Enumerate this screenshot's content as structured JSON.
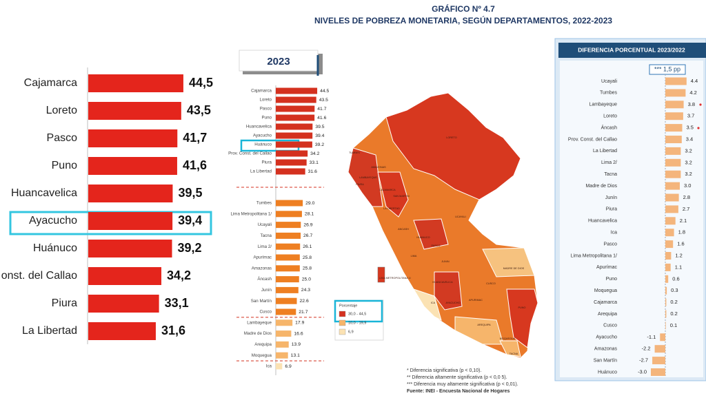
{
  "header": {
    "title": "GRÁFICO Nº 4.7",
    "subtitle": "NIVELES DE POBREZA MONETARIA, SEGÚN DEPARTAMENTOS, 2022-2023"
  },
  "chart_data": [
    {
      "type": "bar",
      "orientation": "horizontal",
      "categories": [
        "Cajamarca",
        "Loreto",
        "Pasco",
        "Puno",
        "Huancavelica",
        "Ayacucho",
        "Huánuco",
        "onst. del Callao",
        "Piura",
        "La Libertad"
      ],
      "values": [
        44.5,
        43.5,
        41.7,
        41.6,
        39.5,
        39.4,
        39.2,
        34.2,
        33.1,
        31.6
      ],
      "value_labels": [
        "44,5",
        "43,5",
        "41,7",
        "41,6",
        "39,5",
        "39,4",
        "39,2",
        "34,2",
        "33,1",
        "31,6"
      ],
      "color": "#e4251c"
    },
    {
      "type": "bar",
      "orientation": "horizontal",
      "title": "2023",
      "categories": [
        "Cajamarca",
        "Loreto",
        "Pasco",
        "Puno",
        "Huancavelica",
        "Ayacucho",
        "Huánuco",
        "Prov. Const. del Callao",
        "Piura",
        "La Libertad",
        "Tumbes",
        "Lima Metropolitana 1/",
        "Ucayali",
        "Tacna",
        "Lima 2/",
        "Apurímac",
        "Amazonas",
        "Áncash",
        "Junín",
        "San Martín",
        "Cusco",
        "Lambayeque",
        "Madre de Dios",
        "Arequipa",
        "Moquegua",
        "Ica"
      ],
      "values": [
        44.5,
        43.5,
        41.7,
        41.6,
        39.5,
        39.4,
        39.2,
        34.2,
        33.1,
        31.6,
        29.0,
        28.1,
        26.9,
        26.7,
        26.1,
        25.8,
        25.8,
        25.0,
        24.3,
        22.6,
        21.7,
        17.9,
        16.6,
        13.9,
        13.1,
        6.9
      ],
      "value_labels": [
        "44.5",
        "43.5",
        "41.7",
        "41.6",
        "39.5",
        "39.4",
        "39.2",
        "34.2",
        "33.1",
        "31.6",
        "29.0",
        "28.1",
        "26.9",
        "26.7",
        "26.1",
        "25.8",
        "25.8",
        "25.0",
        "24.3",
        "22.6",
        "21.7",
        "17.9",
        "16.6",
        "13.9",
        "13.1",
        "6.9"
      ],
      "colors": [
        "#d4311f",
        "#d4311f",
        "#d4311f",
        "#d4311f",
        "#d4311f",
        "#d4311f",
        "#d4311f",
        "#d4311f",
        "#d4311f",
        "#d4311f",
        "#ee7f22",
        "#ee7f22",
        "#ee7f22",
        "#ee7f22",
        "#ee7f22",
        "#ee7f22",
        "#ee7f22",
        "#ee7f22",
        "#ee7f22",
        "#ee7f22",
        "#ee7f22",
        "#f6b56b",
        "#f6b56b",
        "#f6b56b",
        "#f6b56b",
        "#fbe2b3"
      ]
    },
    {
      "type": "bar",
      "orientation": "horizontal",
      "title": "DIFERENCIA PORCENTUAL 2023/2022",
      "annotation": "*** 1,5 pp",
      "categories": [
        "Ucayali",
        "Tumbes",
        "Lambayeque",
        "Loreto",
        "Áncash",
        "Prov. Const. del Callao",
        "La Libertad",
        "Lima 2/",
        "Tacna",
        "Madre de Dios",
        "Junín",
        "Piura",
        "Huancavelica",
        "Ica",
        "Pasco",
        "Lima Metropolitana 1/",
        "Apurímac",
        "Puno",
        "Moquegua",
        "Cajamarca",
        "Arequipa",
        "Cusco",
        "Ayacucho",
        "Amazonas",
        "San Martín",
        "Huánuco"
      ],
      "values": [
        4.4,
        4.2,
        3.8,
        3.7,
        3.5,
        3.4,
        3.2,
        3.2,
        3.2,
        3.0,
        2.8,
        2.7,
        2.1,
        1.8,
        1.6,
        1.2,
        1.1,
        0.6,
        0.3,
        0.2,
        0.2,
        0.1,
        -1.1,
        -2.2,
        -2.7,
        -3.0
      ],
      "value_labels": [
        "4.4",
        "4.2",
        "3.8",
        "3.7",
        "3.5",
        "3.4",
        "3.2",
        "3.2",
        "3.2",
        "3.0",
        "2.8",
        "2.7",
        "2.1",
        "1.8",
        "1.6",
        "1.2",
        "1.1",
        "0.6",
        "0.3",
        "0.2",
        "0.2",
        "0.1",
        "-1.1",
        "-2.2",
        "-2.7",
        "-3.0"
      ],
      "color": "#f4b57c"
    }
  ],
  "map": {
    "labels": [
      "LORETO",
      "TUMBES",
      "PIURA",
      "AMAZONAS",
      "LAMBAYEQUE",
      "CAJAMARCA",
      "SAN MARTIN",
      "LA LIBERTAD",
      "ANCASH",
      "HUANUCO",
      "PASCO",
      "UCAYALI",
      "LIMA",
      "JUNIN",
      "MADRE DE DIOS",
      "CUSCO",
      "APURIMAC",
      "AYACUCHO",
      "HUANCAVELICA",
      "ICA",
      "AREQUIPA",
      "PUNO",
      "MOQUEGUA",
      "TACNA",
      "LIMA METROPOLITANA 1/"
    ],
    "legend": {
      "title": "Porcentaje",
      "items": [
        {
          "label": "30,0 - 44,5",
          "color": "#d4311f"
        },
        {
          "label": "10,0 - 19,9",
          "color": "#f6b56b"
        },
        {
          "label": "6,9",
          "color": "#fbe2b3"
        }
      ]
    }
  },
  "notes": [
    "* Diferencia significativa (p < 0,10).",
    "** Diferencia altamente significativa (p < 0,0 5).",
    "*** Diferencia muy altamente significativa (p < 0,01).",
    "Fuente: INEI - Encuesta Nacional de Hogares"
  ]
}
